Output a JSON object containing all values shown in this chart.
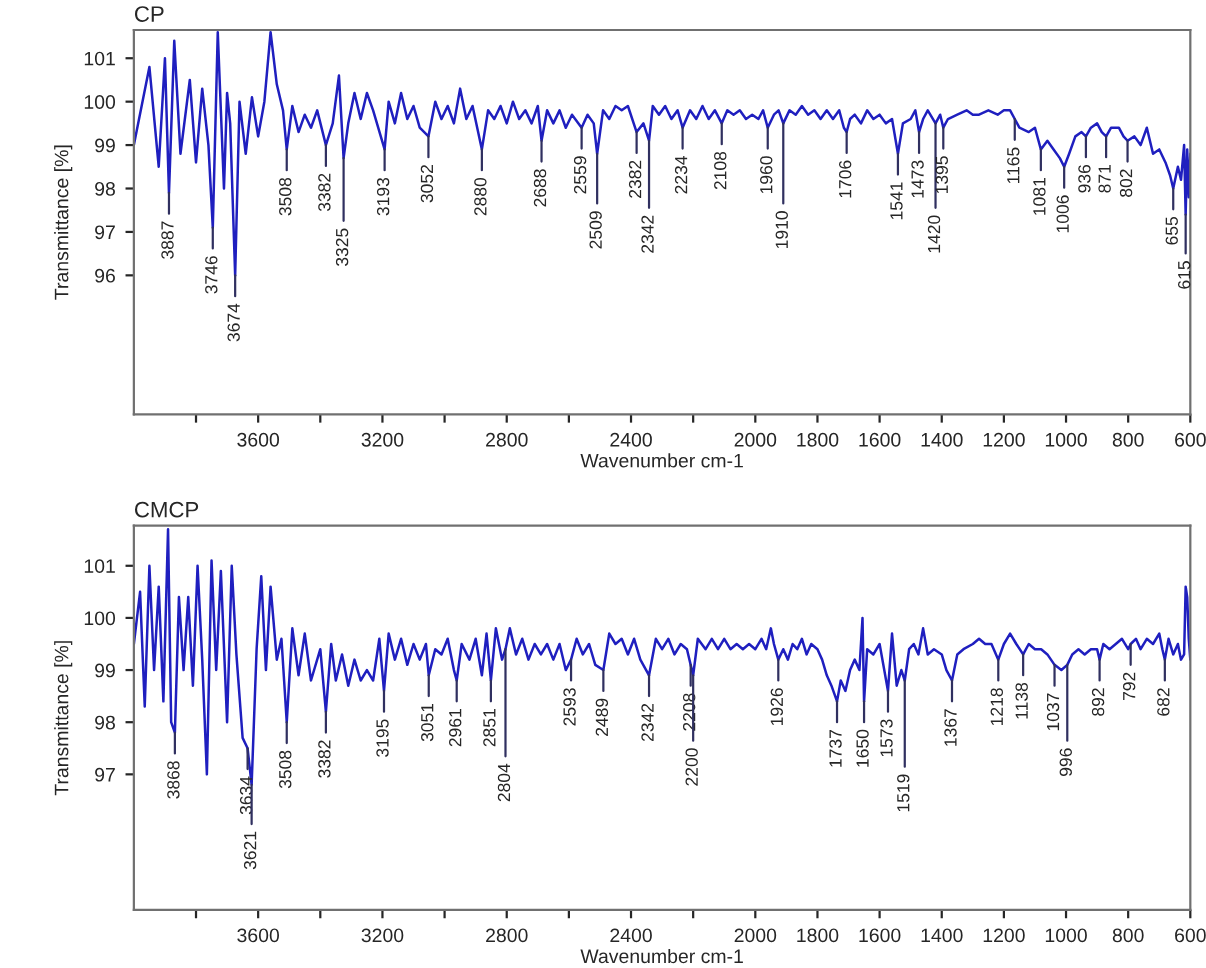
{
  "chart_data": [
    {
      "type": "line",
      "title": "CP",
      "xlabel": "Wavenumber cm-1",
      "ylabel": "Transmittance [%]",
      "xlim": [
        4000,
        600
      ],
      "xticks": [
        {
          "value": 3800,
          "label": null
        },
        3600,
        {
          "value": 3400,
          "label": null
        },
        3200,
        {
          "value": 3000,
          "label": null
        },
        2800,
        {
          "value": 2600,
          "label": null
        },
        2400,
        {
          "value": 2200,
          "label": null
        },
        2000,
        1800,
        1600,
        1400,
        1200,
        1000,
        800,
        600
      ],
      "ylim": [
        92.8,
        101.65
      ],
      "yticks": [
        96,
        97,
        98,
        99,
        100,
        101
      ],
      "grid": false,
      "marker": "none",
      "line_style": "solid",
      "series": [
        {
          "color": "#1f1fbf",
          "x": [
            4000,
            3950,
            3920,
            3900,
            3887,
            3870,
            3850,
            3820,
            3800,
            3780,
            3760,
            3746,
            3730,
            3710,
            3700,
            3690,
            3674,
            3660,
            3640,
            3620,
            3600,
            3580,
            3560,
            3540,
            3520,
            3508,
            3490,
            3470,
            3450,
            3430,
            3410,
            3382,
            3360,
            3340,
            3325,
            3310,
            3290,
            3270,
            3250,
            3230,
            3193,
            3180,
            3160,
            3140,
            3120,
            3100,
            3080,
            3052,
            3030,
            3010,
            2990,
            2970,
            2950,
            2930,
            2910,
            2880,
            2860,
            2840,
            2820,
            2800,
            2780,
            2760,
            2740,
            2720,
            2700,
            2688,
            2670,
            2650,
            2630,
            2610,
            2590,
            2559,
            2540,
            2520,
            2509,
            2490,
            2470,
            2450,
            2430,
            2410,
            2382,
            2360,
            2342,
            2330,
            2310,
            2290,
            2270,
            2250,
            2234,
            2210,
            2190,
            2170,
            2150,
            2130,
            2108,
            2090,
            2070,
            2050,
            2030,
            2010,
            1990,
            1975,
            1960,
            1940,
            1925,
            1910,
            1890,
            1870,
            1850,
            1830,
            1810,
            1790,
            1770,
            1750,
            1730,
            1715,
            1706,
            1695,
            1680,
            1660,
            1640,
            1620,
            1600,
            1580,
            1560,
            1541,
            1525,
            1500,
            1485,
            1473,
            1460,
            1445,
            1420,
            1405,
            1395,
            1380,
            1350,
            1320,
            1300,
            1280,
            1250,
            1220,
            1200,
            1180,
            1165,
            1150,
            1120,
            1100,
            1081,
            1060,
            1040,
            1020,
            1006,
            990,
            970,
            950,
            936,
            920,
            900,
            885,
            871,
            855,
            830,
            815,
            802,
            780,
            760,
            740,
            720,
            700,
            680,
            665,
            655,
            640,
            630,
            620,
            615,
            610,
            605,
            600
          ],
          "values": [
            99.0,
            100.8,
            98.5,
            101.0,
            97.9,
            101.4,
            98.8,
            100.5,
            98.6,
            100.3,
            99.0,
            97.1,
            101.6,
            98.0,
            100.2,
            99.5,
            96.0,
            100.0,
            98.8,
            100.1,
            99.2,
            100.0,
            101.6,
            100.4,
            99.8,
            98.9,
            99.9,
            99.3,
            99.7,
            99.4,
            99.8,
            99.0,
            99.5,
            100.6,
            98.7,
            99.5,
            100.2,
            99.6,
            100.2,
            99.8,
            98.9,
            100.0,
            99.5,
            100.2,
            99.6,
            99.9,
            99.4,
            99.2,
            100.0,
            99.6,
            99.9,
            99.5,
            100.3,
            99.6,
            99.9,
            98.9,
            99.8,
            99.6,
            99.9,
            99.5,
            100.0,
            99.6,
            99.8,
            99.5,
            99.9,
            99.1,
            99.8,
            99.5,
            99.8,
            99.4,
            99.7,
            99.4,
            99.7,
            99.5,
            98.8,
            99.8,
            99.6,
            99.9,
            99.8,
            99.9,
            99.3,
            99.5,
            99.1,
            99.9,
            99.7,
            99.9,
            99.6,
            99.8,
            99.4,
            99.8,
            99.6,
            99.9,
            99.6,
            99.8,
            99.5,
            99.8,
            99.7,
            99.8,
            99.6,
            99.7,
            99.6,
            99.8,
            99.4,
            99.7,
            99.8,
            99.5,
            99.8,
            99.7,
            99.9,
            99.7,
            99.8,
            99.6,
            99.8,
            99.6,
            99.8,
            99.4,
            99.3,
            99.6,
            99.7,
            99.5,
            99.8,
            99.6,
            99.7,
            99.5,
            99.6,
            98.8,
            99.5,
            99.6,
            99.8,
            99.3,
            99.6,
            99.8,
            99.5,
            99.7,
            99.4,
            99.6,
            99.7,
            99.8,
            99.7,
            99.7,
            99.8,
            99.7,
            99.8,
            99.8,
            99.6,
            99.4,
            99.3,
            99.4,
            98.9,
            99.1,
            98.9,
            98.7,
            98.5,
            98.8,
            99.2,
            99.3,
            99.2,
            99.4,
            99.5,
            99.3,
            99.2,
            99.4,
            99.4,
            99.2,
            99.1,
            99.2,
            99.0,
            99.4,
            98.8,
            98.9,
            98.6,
            98.3,
            98.0,
            98.5,
            98.2,
            99.0,
            97.4,
            98.9,
            97.8,
            98.8
          ]
        }
      ],
      "annotations": [
        {
          "text": "3887",
          "x": 3887,
          "y": 97.9
        },
        {
          "text": "3746",
          "x": 3746,
          "y": 97.1
        },
        {
          "text": "3674",
          "x": 3674,
          "y": 96.0
        },
        {
          "text": "3508",
          "x": 3508,
          "y": 98.9
        },
        {
          "text": "3382",
          "x": 3382,
          "y": 99.0
        },
        {
          "text": "3325",
          "x": 3325,
          "y": 98.7
        },
        {
          "text": "3193",
          "x": 3193,
          "y": 98.9
        },
        {
          "text": "3052",
          "x": 3052,
          "y": 99.2
        },
        {
          "text": "2880",
          "x": 2880,
          "y": 98.9
        },
        {
          "text": "2688",
          "x": 2688,
          "y": 99.1
        },
        {
          "text": "2559",
          "x": 2559,
          "y": 99.4
        },
        {
          "text": "2509",
          "x": 2509,
          "y": 98.8
        },
        {
          "text": "2382",
          "x": 2382,
          "y": 99.3
        },
        {
          "text": "2342",
          "x": 2342,
          "y": 99.1
        },
        {
          "text": "2234",
          "x": 2234,
          "y": 99.4
        },
        {
          "text": "2108",
          "x": 2108,
          "y": 99.5
        },
        {
          "text": "1960",
          "x": 1960,
          "y": 99.4
        },
        {
          "text": "1910",
          "x": 1910,
          "y": 99.5
        },
        {
          "text": "1706",
          "x": 1706,
          "y": 99.3
        },
        {
          "text": "1541",
          "x": 1541,
          "y": 98.8
        },
        {
          "text": "1473",
          "x": 1473,
          "y": 99.3
        },
        {
          "text": "1420",
          "x": 1420,
          "y": 99.5
        },
        {
          "text": "1395",
          "x": 1395,
          "y": 99.4
        },
        {
          "text": "1165",
          "x": 1165,
          "y": 99.6
        },
        {
          "text": "1081",
          "x": 1081,
          "y": 98.9
        },
        {
          "text": "1006",
          "x": 1006,
          "y": 98.5
        },
        {
          "text": "936",
          "x": 936,
          "y": 99.2
        },
        {
          "text": "871",
          "x": 871,
          "y": 99.2
        },
        {
          "text": "802",
          "x": 802,
          "y": 99.1
        },
        {
          "text": "655",
          "x": 655,
          "y": 98.0
        },
        {
          "text": "615",
          "x": 615,
          "y": 97.4
        }
      ]
    },
    {
      "type": "line",
      "title": "CMCP",
      "xlabel": "Wavenumber cm-1",
      "ylabel": "Transmittance [%]",
      "xlim": [
        4000,
        600
      ],
      "xticks": [
        {
          "value": 3800,
          "label": null
        },
        3600,
        {
          "value": 3400,
          "label": null
        },
        3200,
        {
          "value": 3000,
          "label": null
        },
        2800,
        {
          "value": 2600,
          "label": null
        },
        2400,
        {
          "value": 2200,
          "label": null
        },
        2000,
        1800,
        1600,
        1400,
        1200,
        1000,
        800,
        600
      ],
      "ylim": [
        94.4,
        101.77
      ],
      "yticks": [
        97,
        98,
        99,
        100,
        101
      ],
      "grid": false,
      "marker": "none",
      "line_style": "solid",
      "series": [
        {
          "color": "#1f1fbf",
          "x": [
            4000,
            3980,
            3965,
            3950,
            3935,
            3920,
            3905,
            3890,
            3880,
            3868,
            3855,
            3840,
            3825,
            3810,
            3795,
            3780,
            3765,
            3750,
            3735,
            3720,
            3700,
            3685,
            3670,
            3650,
            3634,
            3621,
            3605,
            3590,
            3575,
            3560,
            3540,
            3525,
            3508,
            3490,
            3470,
            3450,
            3430,
            3400,
            3382,
            3365,
            3350,
            3330,
            3310,
            3290,
            3270,
            3250,
            3230,
            3210,
            3195,
            3180,
            3160,
            3140,
            3120,
            3100,
            3080,
            3060,
            3051,
            3030,
            3010,
            2990,
            2970,
            2961,
            2945,
            2920,
            2900,
            2880,
            2865,
            2851,
            2835,
            2815,
            2804,
            2790,
            2770,
            2750,
            2730,
            2710,
            2690,
            2670,
            2650,
            2630,
            2610,
            2593,
            2575,
            2555,
            2535,
            2515,
            2489,
            2470,
            2450,
            2430,
            2410,
            2390,
            2370,
            2342,
            2320,
            2300,
            2280,
            2260,
            2240,
            2220,
            2208,
            2200,
            2185,
            2160,
            2140,
            2120,
            2100,
            2080,
            2060,
            2040,
            2020,
            2000,
            1980,
            1965,
            1950,
            1940,
            1926,
            1910,
            1895,
            1880,
            1865,
            1850,
            1835,
            1820,
            1800,
            1785,
            1770,
            1755,
            1737,
            1725,
            1710,
            1695,
            1680,
            1665,
            1655,
            1650,
            1640,
            1620,
            1600,
            1585,
            1573,
            1560,
            1545,
            1530,
            1519,
            1505,
            1490,
            1475,
            1460,
            1445,
            1425,
            1400,
            1385,
            1367,
            1350,
            1330,
            1300,
            1280,
            1260,
            1240,
            1218,
            1200,
            1180,
            1160,
            1138,
            1120,
            1100,
            1080,
            1060,
            1037,
            1015,
            996,
            980,
            960,
            940,
            920,
            900,
            892,
            880,
            860,
            840,
            820,
            800,
            792,
            775,
            760,
            740,
            720,
            700,
            690,
            682,
            670,
            655,
            640,
            630,
            620,
            615,
            610,
            605,
            600
          ],
          "values": [
            99.5,
            100.5,
            98.3,
            101.0,
            99.0,
            100.6,
            98.4,
            101.7,
            98.0,
            97.8,
            100.4,
            99.0,
            100.4,
            98.7,
            101.0,
            99.2,
            97.0,
            101.1,
            99.0,
            100.9,
            98.0,
            101.0,
            99.3,
            97.7,
            97.5,
            96.8,
            99.4,
            100.8,
            99.0,
            100.6,
            99.2,
            99.6,
            98.0,
            99.8,
            98.9,
            99.7,
            98.8,
            99.4,
            98.2,
            99.5,
            98.8,
            99.3,
            98.7,
            99.2,
            98.8,
            99.0,
            98.8,
            99.6,
            98.6,
            99.7,
            99.2,
            99.6,
            99.1,
            99.5,
            99.2,
            99.5,
            98.9,
            99.4,
            99.3,
            99.6,
            99.0,
            98.8,
            99.5,
            99.2,
            99.6,
            98.9,
            99.7,
            98.8,
            99.8,
            99.2,
            99.4,
            99.8,
            99.3,
            99.6,
            99.2,
            99.5,
            99.3,
            99.5,
            99.2,
            99.5,
            99.0,
            99.2,
            99.6,
            99.3,
            99.5,
            99.1,
            99.0,
            99.7,
            99.5,
            99.6,
            99.3,
            99.6,
            99.2,
            98.9,
            99.6,
            99.4,
            99.6,
            99.3,
            99.5,
            99.4,
            99.1,
            98.9,
            99.6,
            99.4,
            99.6,
            99.4,
            99.6,
            99.4,
            99.5,
            99.4,
            99.5,
            99.4,
            99.6,
            99.4,
            99.8,
            99.5,
            99.2,
            99.4,
            99.2,
            99.5,
            99.4,
            99.6,
            99.3,
            99.5,
            99.4,
            99.2,
            98.9,
            98.7,
            98.4,
            98.8,
            98.6,
            99.0,
            99.2,
            99.0,
            100.0,
            98.4,
            99.4,
            99.3,
            99.5,
            99.0,
            98.6,
            99.7,
            98.7,
            99.0,
            98.8,
            99.4,
            99.5,
            99.3,
            99.8,
            99.3,
            99.4,
            99.3,
            99.0,
            98.8,
            99.3,
            99.4,
            99.5,
            99.6,
            99.5,
            99.5,
            99.2,
            99.5,
            99.7,
            99.5,
            99.3,
            99.5,
            99.4,
            99.4,
            99.3,
            99.1,
            99.0,
            99.1,
            99.3,
            99.4,
            99.3,
            99.4,
            99.4,
            99.2,
            99.5,
            99.4,
            99.5,
            99.6,
            99.4,
            99.5,
            99.6,
            99.4,
            99.6,
            99.5,
            99.7,
            99.4,
            99.2,
            99.6,
            99.3,
            99.5,
            99.2,
            99.3,
            100.6,
            100.4,
            99.6,
            99.2
          ]
        }
      ],
      "annotations": [
        {
          "text": "3868",
          "x": 3868,
          "y": 97.8
        },
        {
          "text": "3634",
          "x": 3634,
          "y": 97.5
        },
        {
          "text": "3621",
          "x": 3621,
          "y": 96.8
        },
        {
          "text": "3508",
          "x": 3508,
          "y": 98.0
        },
        {
          "text": "3382",
          "x": 3382,
          "y": 98.2
        },
        {
          "text": "3195",
          "x": 3195,
          "y": 98.6
        },
        {
          "text": "3051",
          "x": 3051,
          "y": 98.9
        },
        {
          "text": "2961",
          "x": 2961,
          "y": 98.8
        },
        {
          "text": "2851",
          "x": 2851,
          "y": 98.8
        },
        {
          "text": "2804",
          "x": 2804,
          "y": 99.4
        },
        {
          "text": "2593",
          "x": 2593,
          "y": 99.2
        },
        {
          "text": "2489",
          "x": 2489,
          "y": 99.0
        },
        {
          "text": "2342",
          "x": 2342,
          "y": 98.9
        },
        {
          "text": "2208",
          "x": 2208,
          "y": 99.1
        },
        {
          "text": "2200",
          "x": 2200,
          "y": 98.9
        },
        {
          "text": "1926",
          "x": 1926,
          "y": 99.2
        },
        {
          "text": "1737",
          "x": 1737,
          "y": 98.4
        },
        {
          "text": "1650",
          "x": 1650,
          "y": 98.4
        },
        {
          "text": "1573",
          "x": 1573,
          "y": 98.6
        },
        {
          "text": "1519",
          "x": 1519,
          "y": 98.8
        },
        {
          "text": "1367",
          "x": 1367,
          "y": 98.8
        },
        {
          "text": "1218",
          "x": 1218,
          "y": 99.2
        },
        {
          "text": "1138",
          "x": 1138,
          "y": 99.3
        },
        {
          "text": "1037",
          "x": 1037,
          "y": 99.1
        },
        {
          "text": "996",
          "x": 996,
          "y": 99.1
        },
        {
          "text": "892",
          "x": 892,
          "y": 99.2
        },
        {
          "text": "792",
          "x": 792,
          "y": 99.5
        },
        {
          "text": "682",
          "x": 682,
          "y": 99.2
        }
      ]
    }
  ]
}
